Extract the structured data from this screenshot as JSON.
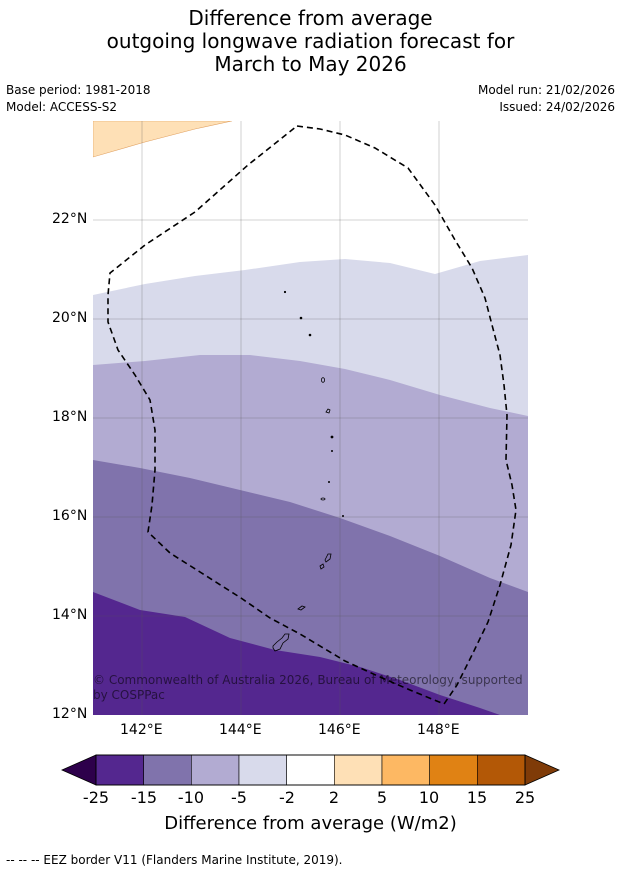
{
  "title": {
    "line1": "Difference from average",
    "line2": "outgoing longwave radiation forecast for",
    "line3": "March to May 2026"
  },
  "meta": {
    "base_period": "Base period: 1981-2018",
    "model": "Model: ACCESS-S2",
    "model_run": "Model run: 21/02/2026",
    "issued": "Issued: 24/02/2026"
  },
  "map": {
    "lat_labels": [
      "22°N",
      "20°N",
      "18°N",
      "16°N",
      "14°N",
      "12°N"
    ],
    "lon_labels": [
      "142°E",
      "144°E",
      "146°E",
      "148°E"
    ],
    "copyright_line1": "© Commonwealth of Australia 2026, Bureau of Meteorology, supported",
    "copyright_line2": "by COSPPac"
  },
  "colorbar": {
    "ticks": [
      "-25",
      "-15",
      "-10",
      "-5",
      "-2",
      "2",
      "5",
      "10",
      "15",
      "25"
    ],
    "colors": [
      "#54278f",
      "#8073ac",
      "#b2abd2",
      "#d8daeb",
      "#ffffff",
      "#fee0b6",
      "#fdb863",
      "#e08214",
      "#b35806"
    ],
    "under_color": "#2d004b",
    "over_color": "#7f3b08",
    "label": "Difference from average (W/m2)"
  },
  "footer": "--  --  -- EEZ border V11 (Flanders Marine Institute, 2019)."
}
